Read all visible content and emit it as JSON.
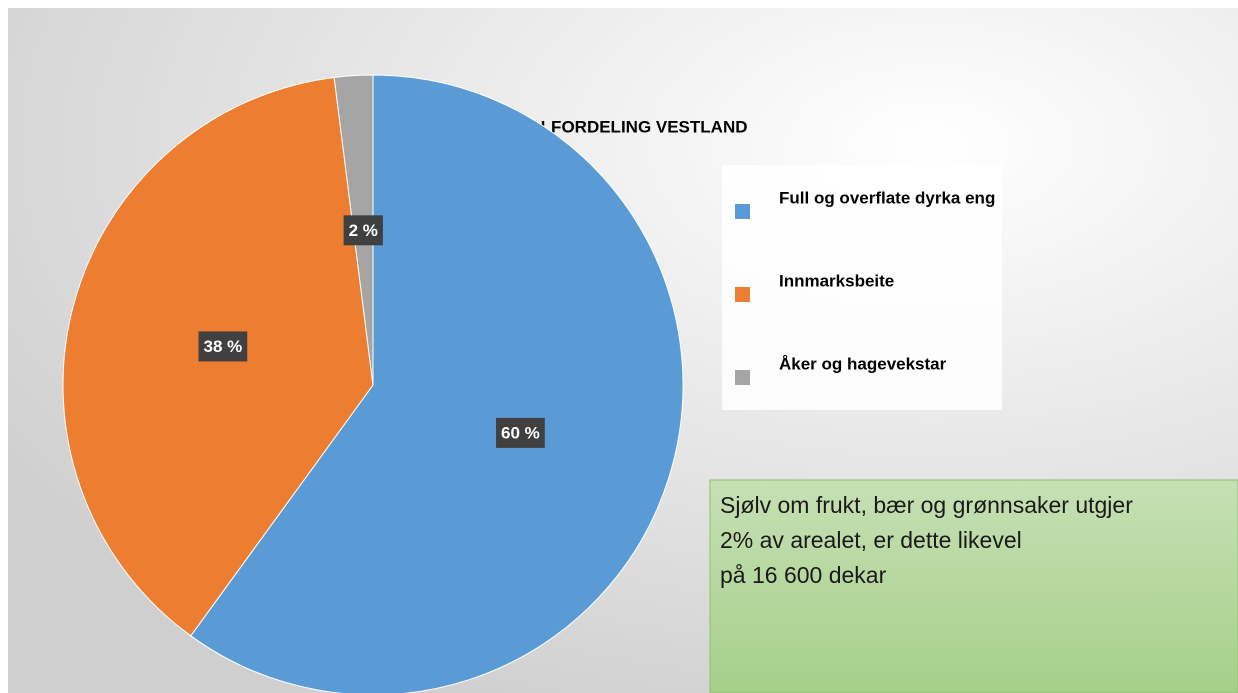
{
  "chart_data": {
    "type": "pie",
    "title": "AREALFORDELING VESTLAND",
    "categories": [
      "Full og overflate dyrka eng",
      "Innmarksbeite",
      "Åker og hagevekstar"
    ],
    "values": [
      60,
      38,
      2
    ],
    "value_labels": [
      "60 %",
      "38 %",
      "2 %"
    ],
    "colors": [
      "#5b9bd5",
      "#ed7d31",
      "#a5a5a5"
    ],
    "legend": "right",
    "annotation": [
      "Sjølv om frukt, bær og grønnsaker utgjer",
      "2% av arealet, er dette likevel",
      "på 16 600 dekar"
    ]
  }
}
